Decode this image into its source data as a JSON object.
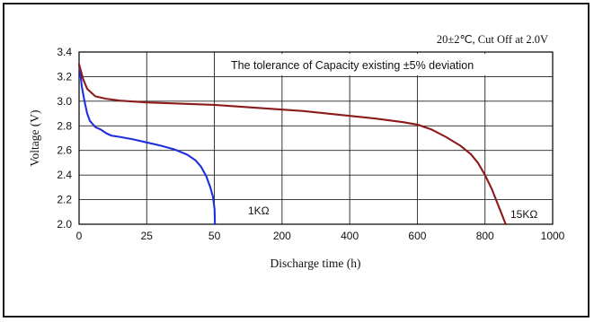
{
  "chart_data": {
    "type": "line",
    "title": "",
    "header_note": "20±2℃, Cut Off at 2.0V",
    "annotation": "The tolerance of Capacity existing ±5% deviation",
    "xlabel": "Discharge time (h)",
    "ylabel": "Voltage (V)",
    "ylim": [
      2.0,
      3.4
    ],
    "y_ticks": [
      "2.0",
      "2.2",
      "2.4",
      "2.6",
      "2.8",
      "3.0",
      "3.2",
      "3.4"
    ],
    "x_scale": "piecewise: 0–50 h in the first two grid divisions, 50–1000 h in the remaining five",
    "x_ticks": [
      "0",
      "25",
      "50",
      "200",
      "400",
      "600",
      "800",
      "1000"
    ],
    "grid": true,
    "series": [
      {
        "name": "1KΩ",
        "color": "#1f2fe0",
        "points": [
          [
            0,
            3.3
          ],
          [
            0.5,
            3.22
          ],
          [
            1,
            3.12
          ],
          [
            2,
            3.0
          ],
          [
            3,
            2.9
          ],
          [
            4,
            2.84
          ],
          [
            6,
            2.79
          ],
          [
            8,
            2.77
          ],
          [
            10,
            2.74
          ],
          [
            12,
            2.72
          ],
          [
            15,
            2.71
          ],
          [
            20,
            2.69
          ],
          [
            25,
            2.665
          ],
          [
            30,
            2.64
          ],
          [
            35,
            2.61
          ],
          [
            40,
            2.565
          ],
          [
            43,
            2.52
          ],
          [
            45,
            2.47
          ],
          [
            47,
            2.39
          ],
          [
            48.5,
            2.3
          ],
          [
            49.5,
            2.22
          ],
          [
            50.5,
            2.12
          ],
          [
            51.5,
            2.0
          ]
        ]
      },
      {
        "name": "15KΩ",
        "color": "#8b1a1a",
        "points": [
          [
            0,
            3.3
          ],
          [
            1.5,
            3.18
          ],
          [
            3,
            3.1
          ],
          [
            6,
            3.04
          ],
          [
            10,
            3.02
          ],
          [
            15,
            3.005
          ],
          [
            25,
            2.99
          ],
          [
            50,
            2.97
          ],
          [
            100,
            2.96
          ],
          [
            200,
            2.94
          ],
          [
            300,
            2.92
          ],
          [
            400,
            2.89
          ],
          [
            500,
            2.86
          ],
          [
            580,
            2.83
          ],
          [
            620,
            2.81
          ],
          [
            660,
            2.77
          ],
          [
            700,
            2.71
          ],
          [
            740,
            2.64
          ],
          [
            770,
            2.57
          ],
          [
            790,
            2.5
          ],
          [
            810,
            2.4
          ],
          [
            830,
            2.28
          ],
          [
            845,
            2.17
          ],
          [
            860,
            2.06
          ],
          [
            868,
            2.0
          ]
        ]
      }
    ]
  }
}
